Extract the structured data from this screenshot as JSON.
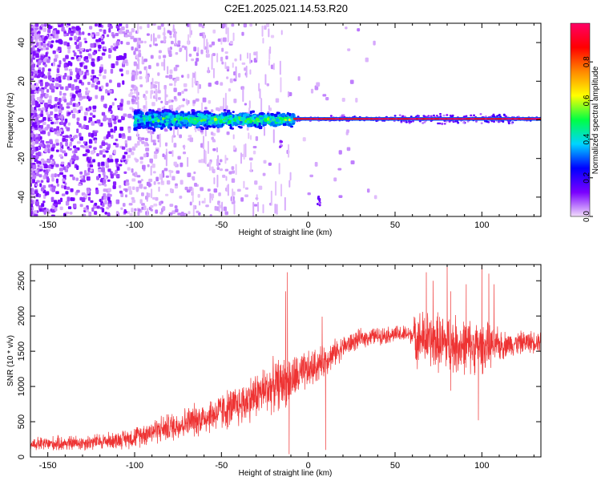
{
  "figure": {
    "title": "C2E1.2025.021.14.53.R20"
  },
  "chart_data": [
    {
      "type": "heatmap",
      "name": "spectrogram",
      "xlabel": "Height of straight line (km)",
      "ylabel": "Frequency (Hz)",
      "xlim": [
        -160,
        134
      ],
      "ylim": [
        -50,
        50
      ],
      "xticks": [
        -150,
        -100,
        -50,
        0,
        50,
        100
      ],
      "xtick_labels": [
        "-150",
        "-100",
        "-50",
        "0",
        "50",
        "100"
      ],
      "yticks": [
        -40,
        -20,
        0,
        20,
        40
      ],
      "ytick_labels": [
        "-40",
        "-20",
        "0",
        "20",
        "40"
      ],
      "colorbar": {
        "label": "Normalized spectral amplitude",
        "range": [
          0,
          1
        ],
        "ticks": [
          0.0,
          0.2,
          0.4,
          0.6,
          0.8
        ],
        "tick_labels": [
          "0.0",
          "0.2",
          "0.4",
          "0.6",
          "0.8"
        ],
        "colormap": [
          "#f2ddfb",
          "#7a00ff",
          "#0000ff",
          "#00d4ff",
          "#00ff44",
          "#ffff00",
          "#ff8800",
          "#ff0000",
          "#ff0066"
        ]
      },
      "features": {
        "noise_region_km": [
          -160,
          -100
        ],
        "dispersed_signal_km": [
          -100,
          -8
        ],
        "narrow_line_km": [
          -8,
          134
        ],
        "line_frequency_hz": 0.5,
        "isolated_blobs": [
          {
            "x": -16,
            "y": -12
          },
          {
            "x": 6,
            "y": -42
          }
        ]
      }
    },
    {
      "type": "line",
      "name": "snr",
      "xlabel": "Height of straight line (km)",
      "ylabel": "SNR (10 * v/v)",
      "xlim": [
        -160,
        134
      ],
      "ylim": [
        0,
        2730
      ],
      "xticks": [
        -150,
        -100,
        -50,
        0,
        50,
        100
      ],
      "xtick_labels": [
        "-150",
        "-100",
        "-50",
        "0",
        "50",
        "100"
      ],
      "yticks": [
        0,
        500,
        1000,
        1500,
        2000,
        2500
      ],
      "ytick_labels": [
        "0",
        "500",
        "1000",
        "1500",
        "2000",
        "2500"
      ],
      "series": [
        {
          "name": "SNR",
          "color": "#ee3333",
          "envelope": [
            {
              "x": -160,
              "mean": 180,
              "noise": 100
            },
            {
              "x": -130,
              "mean": 200,
              "noise": 110
            },
            {
              "x": -110,
              "mean": 240,
              "noise": 120
            },
            {
              "x": -100,
              "mean": 280,
              "noise": 150
            },
            {
              "x": -90,
              "mean": 370,
              "noise": 180
            },
            {
              "x": -80,
              "mean": 420,
              "noise": 200
            },
            {
              "x": -60,
              "mean": 560,
              "noise": 240
            },
            {
              "x": -40,
              "mean": 730,
              "noise": 300
            },
            {
              "x": -30,
              "mean": 880,
              "noise": 330
            },
            {
              "x": -20,
              "mean": 1010,
              "noise": 360
            },
            {
              "x": -10,
              "mean": 1090,
              "noise": 340
            },
            {
              "x": 0,
              "mean": 1220,
              "noise": 270
            },
            {
              "x": 10,
              "mean": 1380,
              "noise": 220
            },
            {
              "x": 20,
              "mean": 1560,
              "noise": 160
            },
            {
              "x": 30,
              "mean": 1680,
              "noise": 130
            },
            {
              "x": 40,
              "mean": 1720,
              "noise": 120
            },
            {
              "x": 50,
              "mean": 1740,
              "noise": 120
            },
            {
              "x": 60,
              "mean": 1740,
              "noise": 130
            },
            {
              "x": 62,
              "mean": 1700,
              "noise": 380
            },
            {
              "x": 80,
              "mean": 1600,
              "noise": 420
            },
            {
              "x": 100,
              "mean": 1560,
              "noise": 360
            },
            {
              "x": 115,
              "mean": 1600,
              "noise": 170
            },
            {
              "x": 134,
              "mean": 1650,
              "noise": 150
            }
          ],
          "spikes": [
            {
              "x": -12,
              "y": 2620
            },
            {
              "x": -13,
              "y": 2350
            },
            {
              "x": 8,
              "y": 1990
            },
            {
              "x": 10,
              "y": 100
            },
            {
              "x": -11,
              "y": 40
            },
            {
              "x": 68,
              "y": 2620
            },
            {
              "x": 72,
              "y": 2500
            },
            {
              "x": 80,
              "y": 2720
            },
            {
              "x": 82,
              "y": 2350
            },
            {
              "x": 91,
              "y": 2450
            },
            {
              "x": 100,
              "y": 2720
            },
            {
              "x": 104,
              "y": 2600
            },
            {
              "x": 107,
              "y": 2450
            },
            {
              "x": 98,
              "y": 520
            },
            {
              "x": 82,
              "y": 940
            }
          ]
        }
      ]
    }
  ]
}
